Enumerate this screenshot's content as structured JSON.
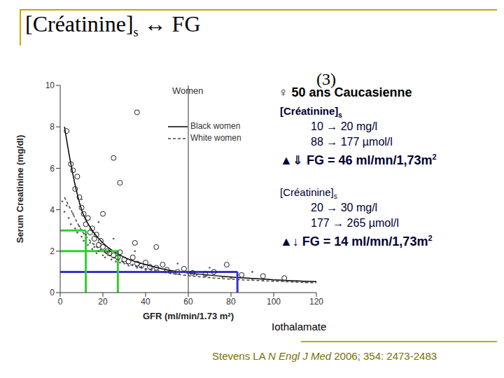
{
  "title": {
    "text": "[Créatinine]",
    "subscript": "s",
    "suffix": " ↔ FG"
  },
  "chart_data": {
    "type": "scatter",
    "title": "Women",
    "x_label": "GFR (ml/min/1.73 m²)",
    "x_label_note": "Iothalamate",
    "y_label": "Serum Creatinine (mg/dl)",
    "xlim": [
      0,
      120
    ],
    "xticks": [
      0,
      20,
      40,
      60,
      80,
      100,
      120
    ],
    "ylim": [
      0,
      10
    ],
    "yticks": [
      0,
      2,
      4,
      6,
      8,
      10
    ],
    "reference_x": 60,
    "series": [
      {
        "name": "Black women",
        "type": "line",
        "color": "#000000",
        "line_style": "solid",
        "x": [
          2,
          5,
          10,
          15,
          20,
          30,
          40,
          50,
          60,
          80,
          100,
          120
        ],
        "values": [
          8,
          6.2,
          4.0,
          3.0,
          2.4,
          1.7,
          1.35,
          1.1,
          0.95,
          0.75,
          0.62,
          0.53
        ]
      },
      {
        "name": "White women",
        "type": "line",
        "color": "#444444",
        "line_style": "dashed",
        "x": [
          2,
          5,
          10,
          15,
          20,
          30,
          40,
          50,
          60,
          80,
          100,
          120
        ],
        "values": [
          4.6,
          4.0,
          3.0,
          2.4,
          2.0,
          1.45,
          1.15,
          0.95,
          0.82,
          0.65,
          0.55,
          0.47
        ]
      }
    ],
    "points": [
      {
        "marker": "circle",
        "color": "#222222",
        "x": [
          3,
          5,
          6,
          7,
          8,
          9,
          10,
          11,
          12,
          13,
          14,
          15,
          16,
          17,
          18,
          19,
          20,
          22,
          23,
          25,
          27,
          28,
          30,
          32,
          34,
          36,
          38,
          40,
          42,
          45,
          48,
          50,
          55,
          58,
          62,
          68,
          72,
          78,
          85,
          95,
          105,
          36,
          25,
          28,
          20,
          35,
          45
        ],
        "values": [
          7.8,
          6.2,
          5.9,
          5.0,
          5.6,
          4.6,
          4.1,
          3.8,
          3.3,
          3.6,
          2.9,
          3.1,
          2.6,
          2.8,
          2.3,
          2.5,
          2.2,
          2.0,
          1.9,
          1.8,
          1.7,
          1.95,
          1.6,
          1.5,
          1.7,
          1.4,
          1.3,
          1.45,
          1.25,
          1.2,
          1.35,
          1.1,
          1.0,
          1.15,
          0.95,
          0.9,
          1.0,
          1.35,
          0.85,
          0.8,
          0.7,
          8.7,
          6.5,
          5.3,
          3.8,
          2.4,
          2.2
        ]
      },
      {
        "marker": "dot",
        "color": "#555555",
        "x": [
          1,
          2,
          3,
          4,
          5,
          6,
          7,
          8,
          9,
          10,
          11,
          12,
          13,
          14,
          15,
          16,
          17,
          18,
          20,
          21,
          22,
          24,
          26,
          28,
          30,
          32,
          34,
          36,
          38,
          40,
          43,
          46,
          50,
          53,
          56,
          60,
          64,
          68,
          72,
          76,
          80,
          85,
          90,
          95,
          100,
          105,
          110,
          115,
          10,
          18,
          25,
          35,
          55,
          70,
          90
        ],
        "values": [
          4.4,
          3.9,
          4.2,
          3.6,
          3.3,
          3.8,
          3.1,
          2.9,
          3.2,
          2.7,
          2.5,
          2.8,
          2.3,
          2.4,
          2.1,
          2.2,
          1.9,
          2.0,
          1.8,
          1.7,
          1.9,
          1.6,
          1.5,
          1.45,
          1.4,
          1.3,
          1.35,
          1.2,
          1.25,
          1.1,
          1.15,
          1.05,
          1.0,
          0.95,
          1.0,
          0.9,
          0.85,
          0.8,
          0.85,
          0.75,
          0.7,
          0.72,
          0.65,
          0.62,
          0.6,
          0.58,
          0.55,
          0.5,
          4.5,
          3.4,
          2.6,
          2.0,
          1.4,
          1.2,
          1.0
        ]
      }
    ],
    "guides": [
      {
        "creatinine": 3,
        "gfr": 12,
        "color": "#33cc33"
      },
      {
        "creatinine": 2,
        "gfr": 27,
        "color": "#33cc33"
      },
      {
        "creatinine": 1,
        "gfr": 83,
        "color": "#3333cc"
      }
    ]
  },
  "annotations": {
    "patient": "♀ 50 ans Caucasienne",
    "ref": "(3)",
    "blocks": [
      {
        "label": "[Créatinine]",
        "label_sub": "s",
        "lines": [
          "10 → 20 mg/l",
          "88 → 177 µmol/l"
        ],
        "result": "▲⇓ FG = 46 ml/mn/1,73m",
        "result_sup": "2"
      },
      {
        "label": "[Créatinine]",
        "label_sub": "s",
        "lines": [
          "20 → 30 mg/l",
          "177 → 265 µmol/l"
        ],
        "result": "▲↓ FG = 14 ml/mn/1,73m",
        "result_sup": "2"
      }
    ]
  },
  "citation": {
    "author": "Stevens LA ",
    "journal": "N Engl J Med",
    "rest": " 2006; 354: 2473-2483"
  }
}
